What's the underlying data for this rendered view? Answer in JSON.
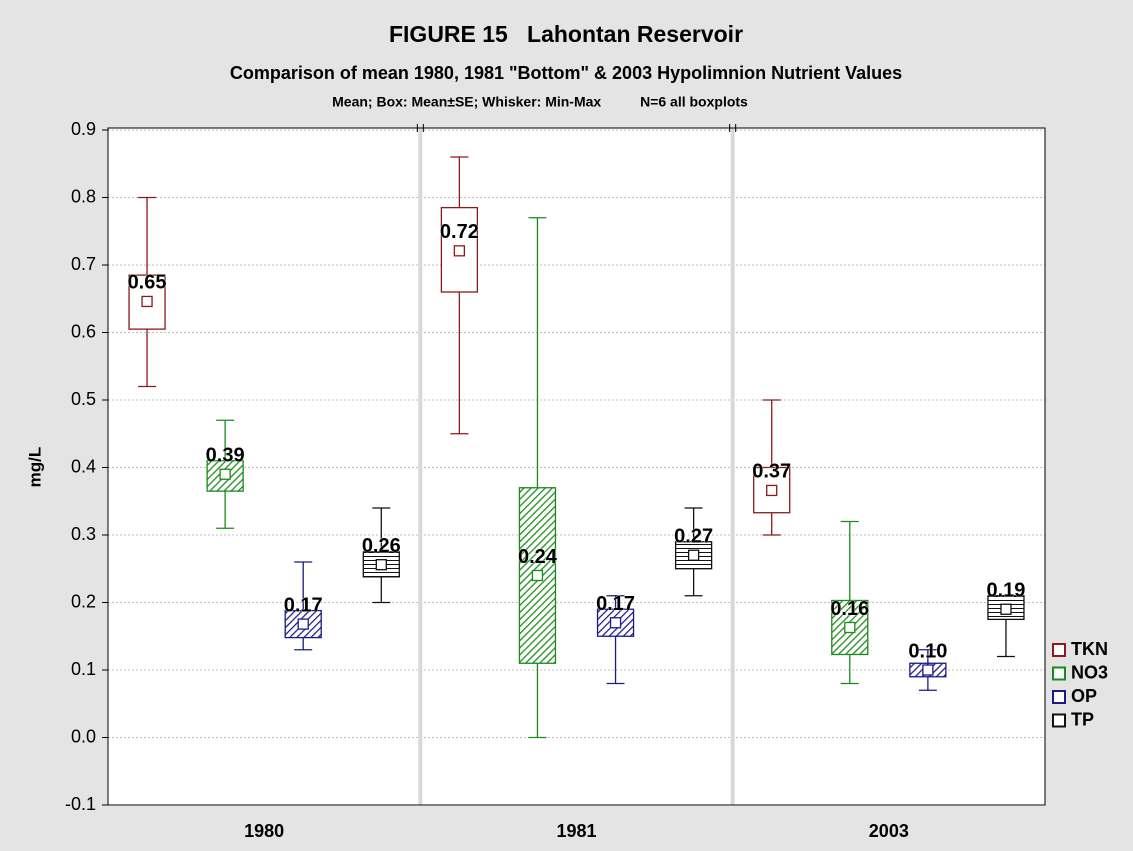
{
  "chart_data": {
    "type": "box",
    "title": "FIGURE 15   Lahontan Reservoir",
    "subtitle": "Comparison of mean 1980, 1981 \"Bottom\" & 2003 Hypolimnion Nutrient Values",
    "note": "Mean; Box: Mean±SE; Whisker: Min-Max          N=6 all boxplots",
    "ylabel": "mg/L",
    "categories": [
      "1980",
      "1981",
      "2003"
    ],
    "ylim": [
      -0.1,
      0.9
    ],
    "yticks": [
      -0.1,
      {
        "value": 0,
        "label": "0.0"
      },
      0.1,
      0.2,
      0.3,
      0.4,
      0.5,
      0.6,
      0.7,
      0.8,
      0.9
    ],
    "grid": true,
    "legend": "right",
    "series": [
      {
        "name": "TKN",
        "color": "#8b1a1a",
        "hatch": "none",
        "values": [
          0.646,
          0.721,
          0.366
        ],
        "value_labels": [
          "0.65",
          "0.72",
          "0.37"
        ],
        "box_low": [
          0.605,
          0.66,
          0.333
        ],
        "box_high": [
          0.685,
          0.785,
          0.4
        ],
        "min": [
          0.52,
          0.45,
          0.3
        ],
        "max": [
          0.8,
          0.86,
          0.5
        ]
      },
      {
        "name": "NO3",
        "color": "#1a8a1a",
        "hatch": "diagonal",
        "values": [
          0.39,
          0.24,
          0.163
        ],
        "value_labels": [
          "0.39",
          "0.24",
          "0.16"
        ],
        "box_low": [
          0.365,
          0.11,
          0.123
        ],
        "box_high": [
          0.41,
          0.37,
          0.203
        ],
        "min": [
          0.31,
          0,
          0.08
        ],
        "max": [
          0.47,
          0.77,
          0.32
        ]
      },
      {
        "name": "OP",
        "color": "#1a1a8a",
        "hatch": "diagonal",
        "values": [
          0.168,
          0.17,
          0.1
        ],
        "value_labels": [
          "0.17",
          "0.17",
          "0.10"
        ],
        "box_low": [
          0.148,
          0.15,
          0.09
        ],
        "box_high": [
          0.188,
          0.19,
          0.11
        ],
        "min": [
          0.13,
          0.08,
          0.07
        ],
        "max": [
          0.26,
          0.21,
          0.13
        ]
      },
      {
        "name": "TP",
        "color": "#111111",
        "hatch": "horizontal",
        "values": [
          0.256,
          0.27,
          0.19
        ],
        "value_labels": [
          "0.26",
          "0.27",
          "0.19"
        ],
        "box_low": [
          0.238,
          0.25,
          0.175
        ],
        "box_high": [
          0.275,
          0.29,
          0.21
        ],
        "min": [
          0.2,
          0.21,
          0.12
        ],
        "max": [
          0.34,
          0.34,
          0.21
        ]
      }
    ]
  }
}
